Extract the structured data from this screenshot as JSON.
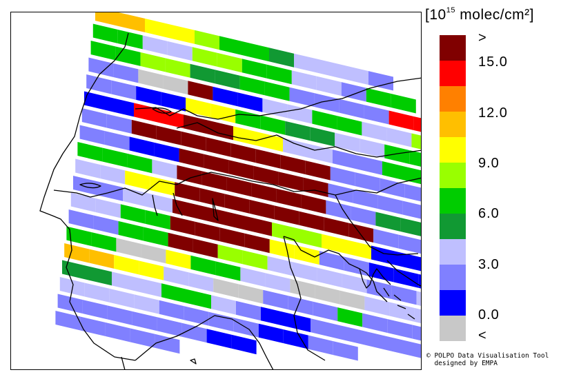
{
  "legend": {
    "title_pre": "[10",
    "title_exp": "15",
    "title_post": " molec/cm²]",
    "colors": [
      "#800000",
      "#ff0000",
      "#ff8000",
      "#ffbf00",
      "#ffff00",
      "#99ff00",
      "#00cc00",
      "#119933",
      "#bfbfff",
      "#8080ff",
      "#0000ff",
      "#c8c8c8"
    ],
    "tick_labels": [
      ">",
      "15.0",
      "12.0",
      "9.0",
      "6.0",
      "3.0",
      "0.0",
      "<"
    ]
  },
  "credit": {
    "line1": "© POLPO Data Visualisation Tool",
    "line2": "  designed by EMPA"
  },
  "map": {
    "pixel_class_rows": [
      "ddeefgghiiij",
      "ggiiffggiijgg",
      "ggffhhggjjjjbb",
      "jjllakkiiggiiff",
      "jjkkeegghhiigghh",
      "kkbbaaeeiijjgghh",
      "jjaaaaaaaajjjjgghh",
      "jjkkaaaaaajjjjiigghh",
      "gggiaaaaaajjhhggffjj",
      "iieeaaaaaaaajjjjhhhh",
      "jjiiaaaaffeekkjjiiggi",
      "iiggaaaaeejjkkkkiiiii",
      "jjggaaffiiiijjiiiggg",
      "gglleggiillliiiiiiiijg",
      "ddeeiilljjjgjjjjjjjj",
      "hhiiggijkkjjjjjj",
      "iiiijjjjkkjj",
      "jjjjjjkk",
      "jjjjj"
    ]
  }
}
